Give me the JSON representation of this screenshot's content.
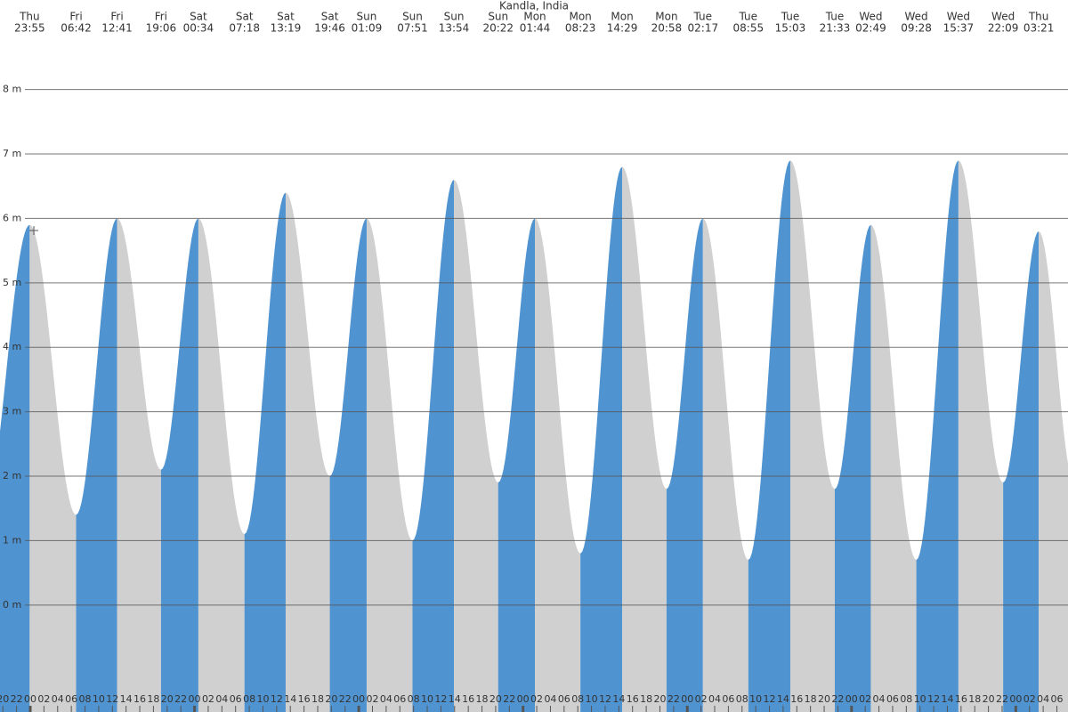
{
  "chart_data": {
    "type": "tide",
    "title": "Kandla, India",
    "days": [
      "Thu",
      "Fri",
      "Fri",
      "Fri",
      "Sat",
      "Sat",
      "Sat",
      "Sat",
      "Sun",
      "Sun",
      "Sun",
      "Sun",
      "Mon",
      "Mon",
      "Mon",
      "Mon",
      "Tue",
      "Tue",
      "Tue",
      "Tue",
      "Wed",
      "Wed",
      "Wed",
      "Wed",
      "Thu"
    ],
    "times": [
      "23:55",
      "06:42",
      "12:41",
      "19:06",
      "00:34",
      "07:18",
      "13:19",
      "19:46",
      "01:09",
      "07:51",
      "13:54",
      "20:22",
      "01:44",
      "08:23",
      "14:29",
      "20:58",
      "02:17",
      "08:55",
      "15:03",
      "21:33",
      "02:49",
      "09:28",
      "15:37",
      "22:09",
      "03:21"
    ],
    "values": [
      5.9,
      1.4,
      6.0,
      2.1,
      6.0,
      1.1,
      6.4,
      2.0,
      6.0,
      1.0,
      6.6,
      1.9,
      6.0,
      0.8,
      6.8,
      1.8,
      6.0,
      0.7,
      6.9,
      1.8,
      5.9,
      0.7,
      6.9,
      1.9,
      5.8
    ],
    "rising_color": "#4f93d0",
    "falling_color": "#d0d0d0",
    "ylim": [
      -1.66,
      9.39
    ],
    "yticks": [
      {
        "value": 0,
        "label": "0 m"
      },
      {
        "value": 1,
        "label": "1 m"
      },
      {
        "value": 2,
        "label": "2 m"
      },
      {
        "value": 3,
        "label": "3 m"
      },
      {
        "value": 4,
        "label": "4 m"
      },
      {
        "value": 5,
        "label": "5 m"
      },
      {
        "value": 6,
        "label": "6 m"
      },
      {
        "value": 7,
        "label": "7 m"
      },
      {
        "value": 8,
        "label": "8 m"
      }
    ],
    "xticks": [
      "20",
      "22",
      "00",
      "02",
      "04",
      "06",
      "08",
      "10",
      "12",
      "14",
      "16",
      "18",
      "20",
      "22",
      "00",
      "02",
      "04",
      "06",
      "08",
      "10",
      "12",
      "14",
      "16",
      "18",
      "20",
      "22",
      "00",
      "02",
      "04",
      "06",
      "08",
      "10",
      "12",
      "14",
      "16",
      "18",
      "20",
      "22",
      "00",
      "02",
      "04",
      "06",
      "08",
      "10",
      "12",
      "14",
      "16",
      "18",
      "20",
      "22",
      "00",
      "02",
      "04",
      "06",
      "08",
      "10",
      "12",
      "14",
      "16",
      "18",
      "20",
      "22",
      "00",
      "02",
      "04",
      "06",
      "08",
      "10",
      "12",
      "14",
      "16",
      "18",
      "20",
      "22",
      "00",
      "02",
      "04",
      "06"
    ],
    "grid": true
  }
}
